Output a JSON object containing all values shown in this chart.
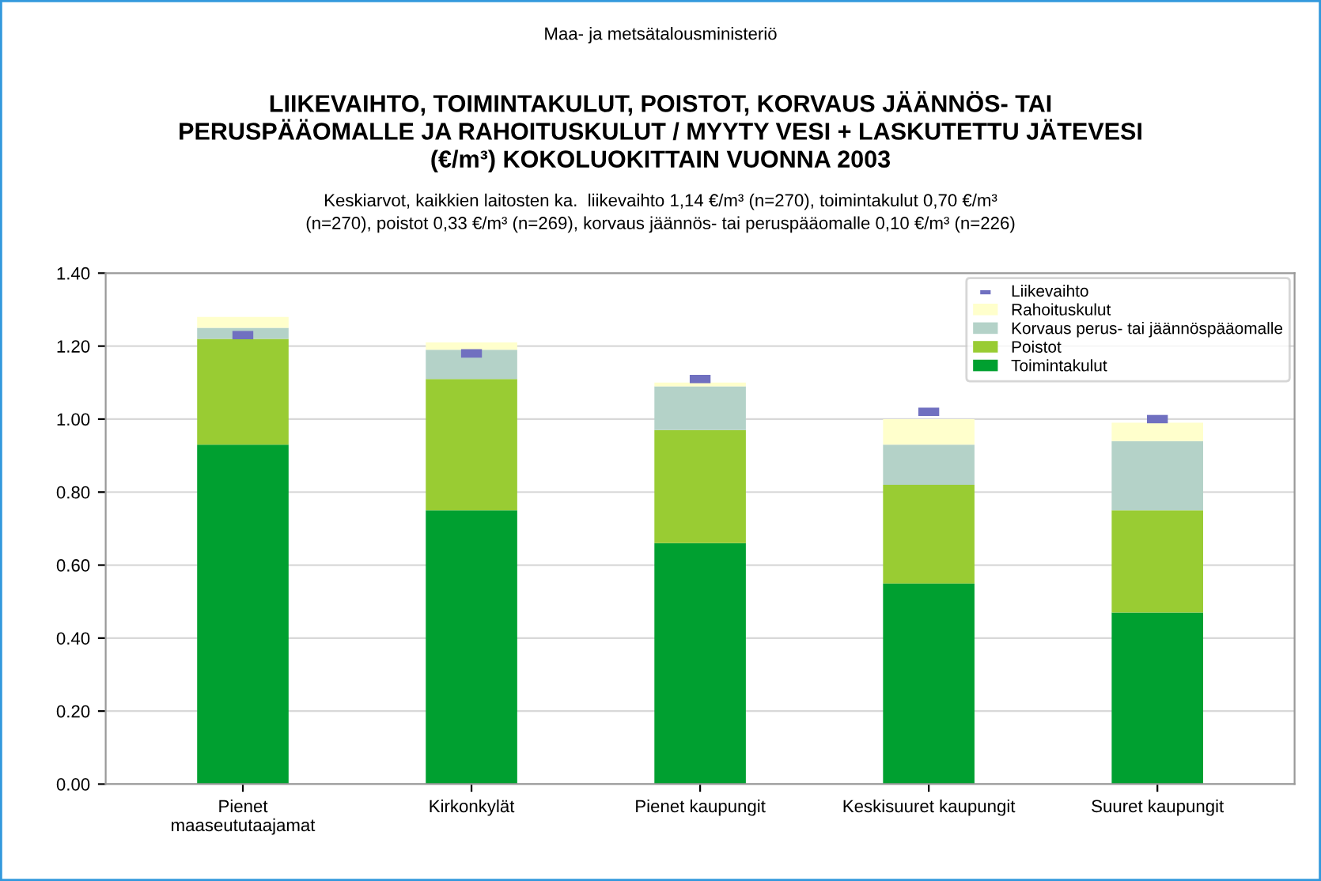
{
  "chart_data": {
    "type": "bar",
    "stacked": true,
    "title": "LIIKEVAIHTO, TOIMINTAKULUT, POISTOT, KORVAUS JÄÄNNÖS- TAI\nPERUSPÄÄOMALLE JA RAHOITUSKULUT / MYYTY VESI + LASKUTETTU JÄTEVESI\n(€/m³) KOKOLUOKITTAIN VUONNA 2003",
    "subtitle": "Keskiarvot, kaikkien laitosten ka.  liikevaihto 1,14 €/m³ (n=270), toimintakulut 0,70 €/m³\n(n=270), poistot 0,33 €/m³ (n=269), korvaus jäännös- tai peruspääomalle 0,10 €/m³ (n=226)",
    "annotations": [
      "Maa- ja metsätalousministeriö"
    ],
    "categories": [
      "Pienet\nmaaseututaajamat",
      "Kirkonkylät",
      "Pienet kaupungit",
      "Keskisuuret kaupungit",
      "Suuret kaupungit"
    ],
    "series": [
      {
        "name": "Toimintakulut",
        "color": "#00a030",
        "values": [
          0.93,
          0.75,
          0.66,
          0.55,
          0.47
        ]
      },
      {
        "name": "Poistot",
        "color": "#99cc33",
        "values": [
          0.29,
          0.36,
          0.31,
          0.27,
          0.28
        ]
      },
      {
        "name": "Korvaus perus- tai jäännöspääomalle",
        "color": "#b4d2c8",
        "values": [
          0.03,
          0.08,
          0.12,
          0.11,
          0.19
        ]
      },
      {
        "name": "Rahoituskulut",
        "color": "#ffffcc",
        "values": [
          0.03,
          0.02,
          0.01,
          0.07,
          0.05
        ]
      },
      {
        "name": "Liikevaihto",
        "type": "scatter",
        "color": "#7070c0",
        "values": [
          1.23,
          1.18,
          1.11,
          1.02,
          1.0
        ]
      }
    ],
    "ylim": [
      0,
      1.4
    ],
    "yticks": [
      {
        "value": 0,
        "label": "0.00"
      },
      {
        "value": 0.2,
        "label": "0.20"
      },
      {
        "value": 0.4,
        "label": "0.40"
      },
      {
        "value": 0.6,
        "label": "0.60"
      },
      {
        "value": 0.8,
        "label": "0.80"
      },
      {
        "value": 1.0,
        "label": "1.00"
      },
      {
        "value": 1.2,
        "label": "1.20"
      },
      {
        "value": 1.4,
        "label": "1.40"
      }
    ],
    "grid": "y",
    "legend": "top right"
  }
}
